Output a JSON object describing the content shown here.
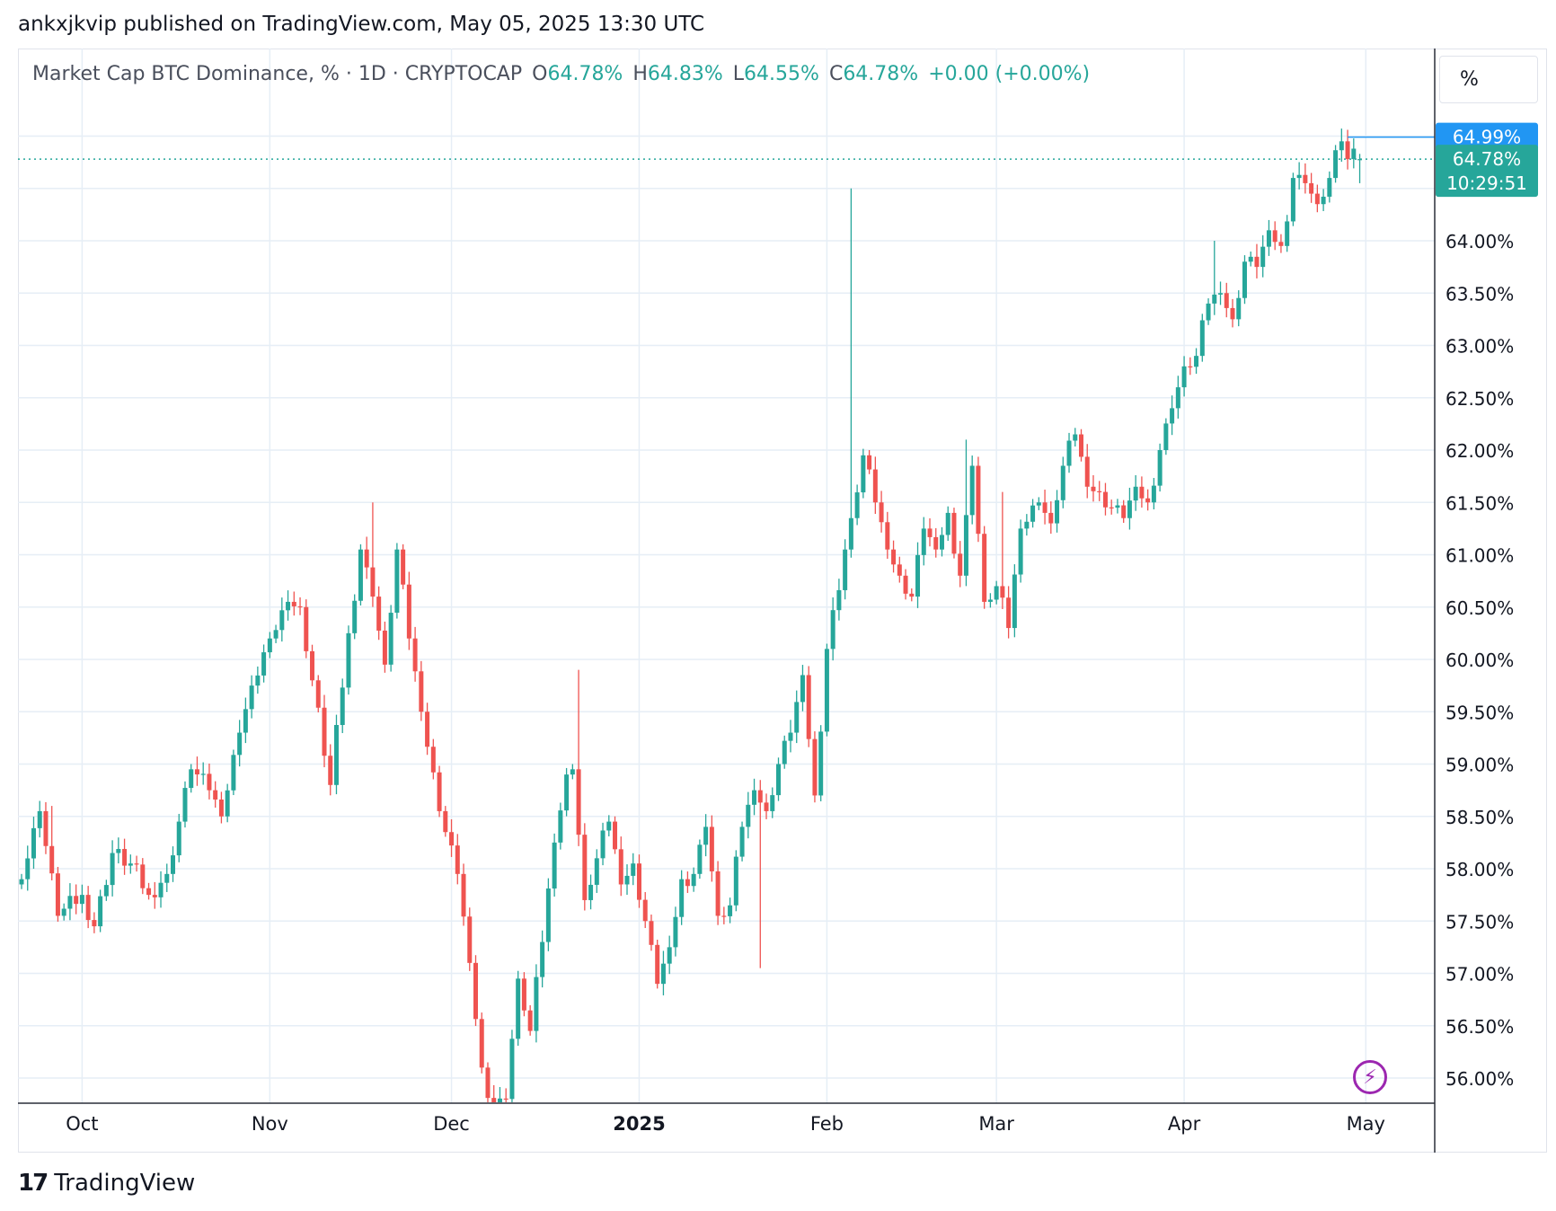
{
  "header": {
    "published_text": "ankxjkvip published on TradingView.com, May 05, 2025 13:30 UTC"
  },
  "legend": {
    "symbol_text": "Market Cap BTC Dominance, % · 1D · CRYPTOCAP",
    "open_label": "O",
    "open": "64.78%",
    "high_label": "H",
    "high": "64.83%",
    "low_label": "L",
    "low": "64.55%",
    "close_label": "C",
    "close": "64.78%",
    "change": "+0.00 (+0.00%)"
  },
  "scale_button": {
    "label": "%"
  },
  "price_tags": {
    "high_tag": "64.99%",
    "last_price": "64.78%",
    "countdown": "10:29:51"
  },
  "footer": {
    "brand": "TradingView",
    "brand_logo_text": "17"
  },
  "colors": {
    "up": "#26a69a",
    "down": "#ef5350",
    "grid": "#e6eef6",
    "high_tag": "#2196f3",
    "last_tag": "#26a69a",
    "bolt": "#9c27b0"
  },
  "icons": {
    "bolt": "lightning-bolt-icon"
  },
  "chart_data": {
    "type": "candlestick",
    "x_axis_labels": [
      "Oct",
      "Nov",
      "Dec",
      "2025",
      "Feb",
      "Mar",
      "Apr",
      "May"
    ],
    "y_tick_labels": [
      "64.00%",
      "63.50%",
      "63.00%",
      "62.50%",
      "62.00%",
      "61.50%",
      "61.00%",
      "60.50%",
      "60.00%",
      "59.50%",
      "59.00%",
      "58.50%",
      "58.00%",
      "57.50%",
      "57.00%",
      "56.50%",
      "56.00%"
    ],
    "y_ticks": [
      64.0,
      63.5,
      63.0,
      62.5,
      62.0,
      61.5,
      61.0,
      60.5,
      60.0,
      59.5,
      59.0,
      58.5,
      58.0,
      57.5,
      57.0,
      56.5,
      56.0
    ],
    "ylim": [
      55.75,
      65.5
    ],
    "date_range": [
      "2024-09-21",
      "2025-05-05"
    ],
    "grid": true,
    "anchor_closes": [
      [
        0,
        57.9
      ],
      [
        3,
        58.55
      ],
      [
        6,
        57.55
      ],
      [
        10,
        57.75
      ],
      [
        12,
        57.45
      ],
      [
        15,
        58.15
      ],
      [
        18,
        58.05
      ],
      [
        21,
        57.75
      ],
      [
        24,
        57.95
      ],
      [
        28,
        58.95
      ],
      [
        31,
        58.75
      ],
      [
        33,
        58.5
      ],
      [
        36,
        59.3
      ],
      [
        38,
        59.75
      ],
      [
        41,
        60.2
      ],
      [
        44,
        60.55
      ],
      [
        46,
        60.5
      ],
      [
        48,
        59.8
      ],
      [
        51,
        58.8
      ],
      [
        54,
        60.25
      ],
      [
        56,
        61.05
      ],
      [
        58,
        60.6
      ],
      [
        60,
        59.95
      ],
      [
        62,
        61.05
      ],
      [
        64,
        60.2
      ],
      [
        66,
        59.5
      ],
      [
        69,
        58.55
      ],
      [
        72,
        57.95
      ],
      [
        74,
        57.1
      ],
      [
        76,
        56.1
      ],
      [
        78,
        55.7
      ],
      [
        80,
        55.8
      ],
      [
        82,
        56.95
      ],
      [
        84,
        56.45
      ],
      [
        86,
        57.3
      ],
      [
        88,
        58.25
      ],
      [
        90,
        58.9
      ],
      [
        91,
        58.95
      ],
      [
        93,
        57.7
      ],
      [
        95,
        58.1
      ],
      [
        97,
        58.45
      ],
      [
        99,
        57.85
      ],
      [
        101,
        58.05
      ],
      [
        103,
        57.5
      ],
      [
        105,
        56.9
      ],
      [
        107,
        57.25
      ],
      [
        109,
        57.9
      ],
      [
        111,
        57.95
      ],
      [
        113,
        58.4
      ],
      [
        115,
        57.55
      ],
      [
        117,
        57.65
      ],
      [
        119,
        58.4
      ],
      [
        121,
        58.75
      ],
      [
        123,
        58.55
      ],
      [
        125,
        59.0
      ],
      [
        127,
        59.3
      ],
      [
        129,
        59.85
      ],
      [
        131,
        58.7
      ],
      [
        133,
        60.1
      ],
      [
        136,
        61.05
      ],
      [
        137,
        61.35
      ],
      [
        139,
        61.95
      ],
      [
        141,
        61.5
      ],
      [
        143,
        61.05
      ],
      [
        145,
        60.8
      ],
      [
        147,
        60.6
      ],
      [
        149,
        61.25
      ],
      [
        151,
        61.05
      ],
      [
        153,
        61.4
      ],
      [
        155,
        60.8
      ],
      [
        157,
        61.85
      ],
      [
        159,
        60.55
      ],
      [
        161,
        60.7
      ],
      [
        163,
        60.3
      ],
      [
        165,
        61.25
      ],
      [
        168,
        61.5
      ],
      [
        170,
        61.3
      ],
      [
        172,
        61.85
      ],
      [
        174,
        62.15
      ],
      [
        176,
        61.65
      ],
      [
        178,
        61.6
      ],
      [
        180,
        61.45
      ],
      [
        182,
        61.35
      ],
      [
        184,
        61.65
      ],
      [
        186,
        61.5
      ],
      [
        188,
        62.0
      ],
      [
        190,
        62.4
      ],
      [
        192,
        62.8
      ],
      [
        194,
        62.9
      ],
      [
        196,
        63.4
      ],
      [
        198,
        63.5
      ],
      [
        200,
        63.25
      ],
      [
        202,
        63.8
      ],
      [
        204,
        63.75
      ],
      [
        206,
        64.1
      ],
      [
        208,
        63.95
      ],
      [
        210,
        64.6
      ],
      [
        212,
        64.55
      ],
      [
        214,
        64.35
      ],
      [
        216,
        64.6
      ],
      [
        218,
        64.95
      ],
      [
        219,
        64.78
      ],
      [
        220,
        64.88
      ],
      [
        221,
        64.78
      ]
    ],
    "last_candle": {
      "open": 64.78,
      "high": 64.83,
      "low": 64.55,
      "close": 64.78
    },
    "spikes": [
      {
        "index": 5,
        "high": 58.6
      },
      {
        "index": 58,
        "high": 61.5
      },
      {
        "index": 77,
        "low": 55.7
      },
      {
        "index": 92,
        "high": 59.9
      },
      {
        "index": 122,
        "low": 57.05
      },
      {
        "index": 137,
        "high": 64.5
      },
      {
        "index": 156,
        "high": 62.1
      },
      {
        "index": 162,
        "high": 61.6
      },
      {
        "index": 197,
        "high": 64.0
      }
    ],
    "reference_lines": [
      {
        "name": "high",
        "value": 64.99
      },
      {
        "name": "last",
        "value": 64.78
      }
    ]
  }
}
